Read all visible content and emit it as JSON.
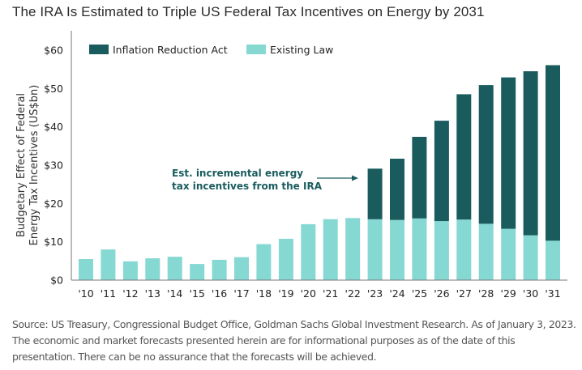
{
  "title": "The IRA Is Estimated to Triple US Federal Tax Incentives on Energy by 2031",
  "source": "Source: US Treasury, Congressional Budget Office, Goldman Sachs Global Investment Research. As of January 3, 2023. The economic and market forecasts presented herein are for informational purposes as of the date of this presentation. There can be no assurance that the forecasts will be achieved.",
  "colors": {
    "ira": "#1a5c5e",
    "existing": "#86d8d3",
    "axis": "#666666",
    "annotation": "#1a5c5e"
  },
  "chart_data": {
    "type": "bar",
    "stacked": true,
    "title": "The IRA Is Estimated to Triple US Federal Tax Incentives on Energy by 2031",
    "xlabel": "",
    "ylabel_lines": [
      "Budgetary Effect of Federal",
      "Energy Tax Incentives (US$bn)"
    ],
    "ylim": [
      0,
      60
    ],
    "yticks": [
      0,
      10,
      20,
      30,
      40,
      50,
      60
    ],
    "ytick_labels": [
      "$0",
      "$10",
      "$20",
      "$30",
      "$40",
      "$50",
      "$60"
    ],
    "grid": false,
    "legend_position": "top-left",
    "categories": [
      "'10",
      "'11",
      "'12",
      "'13",
      "'14",
      "'15",
      "'16",
      "'17",
      "'18",
      "'19",
      "'20",
      "'21",
      "'22",
      "'23",
      "'24",
      "'25",
      "'26",
      "'27",
      "'28",
      "'29",
      "'30",
      "'31"
    ],
    "series": [
      {
        "name": "Existing Law",
        "color": "#86d8d3",
        "values": [
          5.5,
          8.0,
          4.9,
          5.7,
          6.1,
          4.2,
          5.3,
          6.0,
          9.4,
          10.8,
          14.6,
          15.9,
          16.2,
          15.9,
          15.7,
          16.1,
          15.4,
          15.8,
          14.7,
          13.4,
          11.7,
          10.3
        ]
      },
      {
        "name": "Inflation Reduction Act",
        "color": "#1a5c5e",
        "values": [
          0,
          0,
          0,
          0,
          0,
          0,
          0,
          0,
          0,
          0,
          0,
          0,
          0,
          13.2,
          16.0,
          21.3,
          26.2,
          32.7,
          36.2,
          39.5,
          42.8,
          45.8
        ]
      }
    ],
    "legend": [
      "Inflation Reduction Act",
      "Existing Law"
    ],
    "annotation": {
      "lines": [
        "Est. incremental energy",
        "tax incentives from the IRA"
      ],
      "points_to": "'23"
    }
  }
}
